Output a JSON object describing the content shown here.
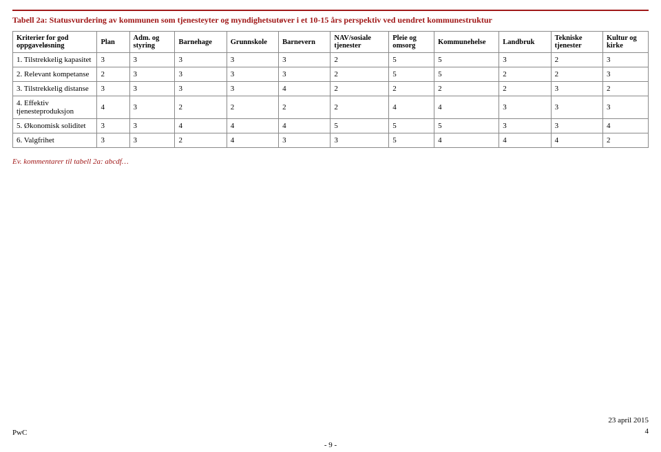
{
  "title": "Tabell 2a: Statusvurdering av kommunen som tjenesteyter og myndighetsutøver i et 10-15 års perspektiv ved uendret kommunestruktur",
  "columns": [
    "Kriterier for god oppgaveløsning",
    "Plan",
    "Adm. og styring",
    "Barnehage",
    "Grunnskole",
    "Barnevern",
    "NAV/sosiale tjenester",
    "Pleie og omsorg",
    "Kommunehelse",
    "Landbruk",
    "Tekniske tjenester",
    "Kultur og kirke"
  ],
  "rows": [
    {
      "label": "1. Tilstrekkelig kapasitet",
      "vals": [
        "3",
        "3",
        "3",
        "3",
        "3",
        "2",
        "5",
        "5",
        "3",
        "2",
        "3"
      ]
    },
    {
      "label": "2. Relevant kompetanse",
      "vals": [
        "2",
        "3",
        "3",
        "3",
        "3",
        "2",
        "5",
        "5",
        "2",
        "2",
        "3"
      ]
    },
    {
      "label": "3. Tilstrekkelig distanse",
      "vals": [
        "3",
        "3",
        "3",
        "3",
        "4",
        "2",
        "2",
        "2",
        "2",
        "3",
        "2"
      ]
    },
    {
      "label": "4. Effektiv tjenesteproduksjon",
      "vals": [
        "4",
        "3",
        "2",
        "2",
        "2",
        "2",
        "4",
        "4",
        "3",
        "3",
        "3"
      ]
    },
    {
      "label": "5. Økonomisk soliditet",
      "vals": [
        "3",
        "3",
        "4",
        "4",
        "4",
        "5",
        "5",
        "5",
        "3",
        "3",
        "4"
      ]
    },
    {
      "label": "6. Valgfrihet",
      "vals": [
        "3",
        "3",
        "2",
        "4",
        "3",
        "3",
        "5",
        "4",
        "4",
        "4",
        "2"
      ]
    }
  ],
  "comment": "Ev. kommentarer til tabell 2a: abcdf…",
  "footer": {
    "left": "PwC",
    "date": "23 april 2015",
    "pageRight": "4",
    "pageCenter": "- 9 -"
  },
  "col_widths": [
    "13%",
    "5%",
    "7%",
    "8%",
    "8%",
    "8%",
    "9%",
    "7%",
    "10%",
    "8%",
    "8%",
    "7%"
  ]
}
